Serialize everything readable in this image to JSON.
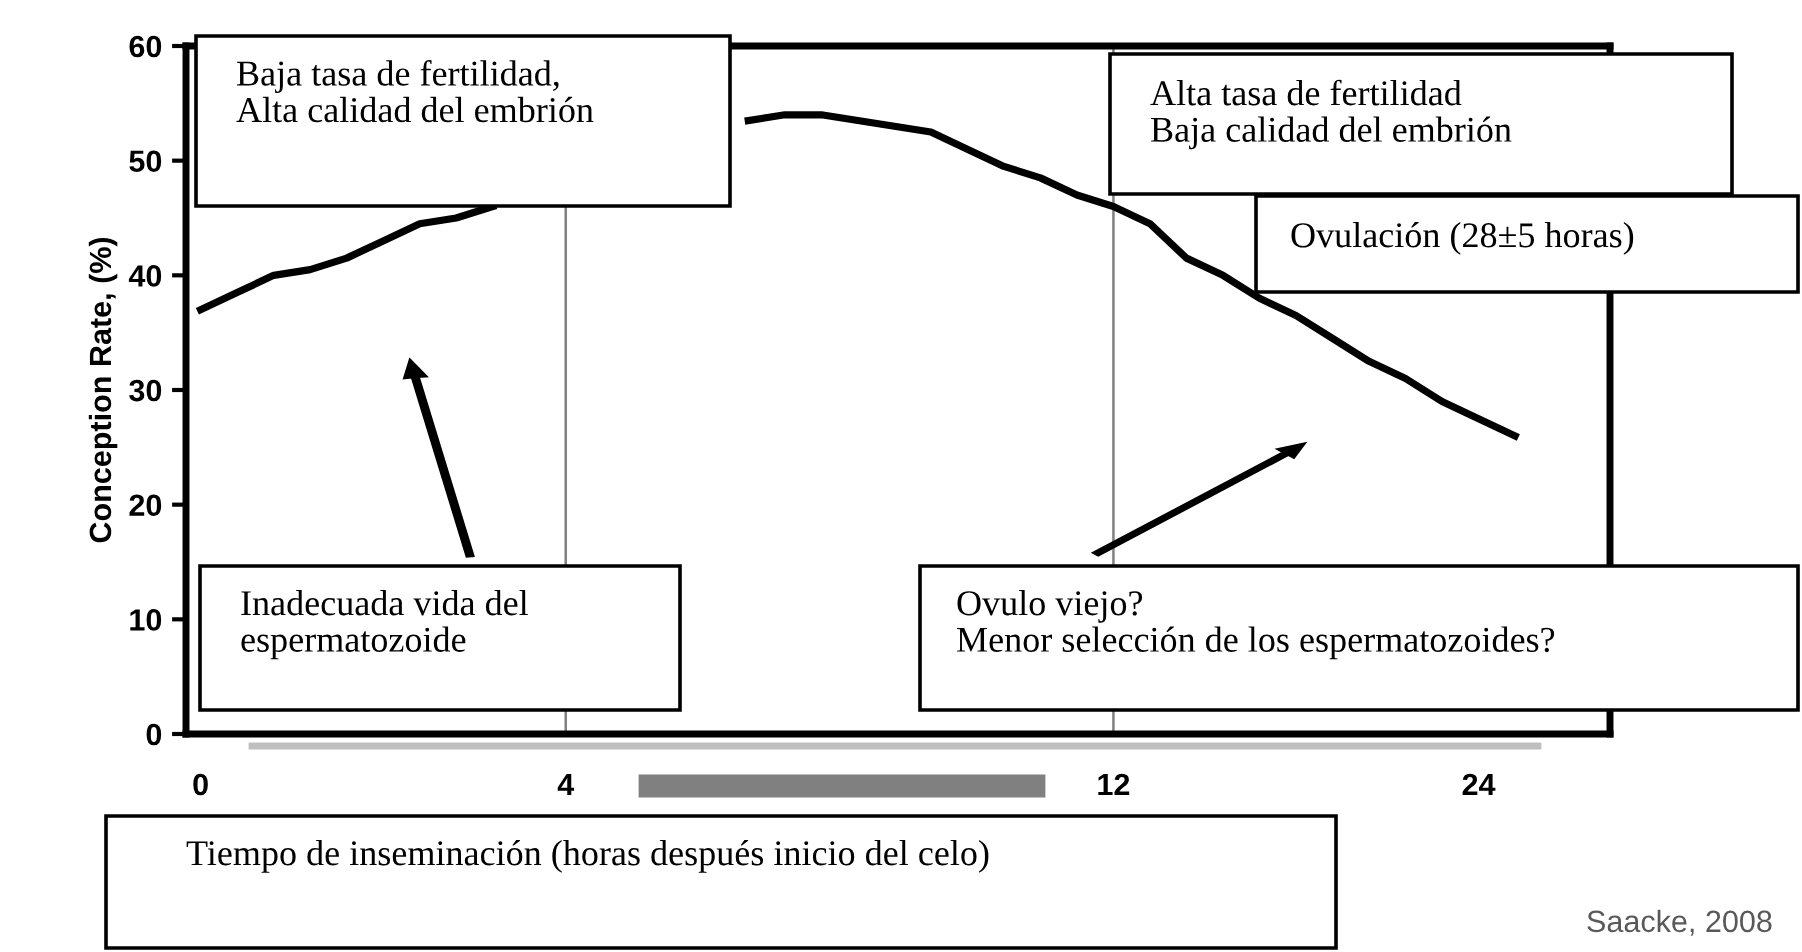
{
  "chart_data": {
    "type": "line",
    "xlabel": "Tiempo de inseminación (horas después inicio del celo)",
    "ylabel": "Conception Rate, (%)",
    "categories": [
      "0",
      null,
      null,
      null,
      null,
      null,
      null,
      null,
      null,
      null,
      "4",
      null,
      null,
      null,
      null,
      null,
      null,
      null,
      null,
      null,
      null,
      null,
      null,
      null,
      null,
      "12",
      null,
      null,
      null,
      null,
      null,
      null,
      null,
      null,
      null,
      "24",
      null
    ],
    "series": [
      {
        "color": "#000000",
        "values": [
          37,
          38.5,
          40,
          40.5,
          41.5,
          43,
          44.5,
          45,
          46,
          null,
          null,
          null,
          null,
          null,
          null,
          53.5,
          54,
          54,
          53.5,
          53,
          52.5,
          51,
          49.5,
          48.5,
          47,
          46,
          44.5,
          41.5,
          40,
          38,
          36.5,
          34.5,
          32.5,
          31,
          29,
          27.5,
          26
        ]
      }
    ],
    "ylim": [
      0,
      60
    ],
    "yticks": [
      0,
      10,
      20,
      30,
      40,
      50,
      60
    ],
    "ref_lines": [
      {
        "axis": "x",
        "value": "4",
        "color": "#808080"
      },
      {
        "axis": "x",
        "value": "12",
        "color": "#808080"
      }
    ],
    "annotations": [
      "Baja tasa de fertilidad,\nAlta calidad del embrión",
      "Alta tasa de fertilidad\nBaja calidad del embrión",
      "Ovulación (28±5 horas)",
      "Inadecuada vida del\nespermatozoide",
      "Ovulo viejo?\nMenor selección de los espermatozoides?",
      "Saacke, 2008"
    ],
    "grid": false,
    "legend": false,
    "marker": "none",
    "line_style": "solid"
  }
}
